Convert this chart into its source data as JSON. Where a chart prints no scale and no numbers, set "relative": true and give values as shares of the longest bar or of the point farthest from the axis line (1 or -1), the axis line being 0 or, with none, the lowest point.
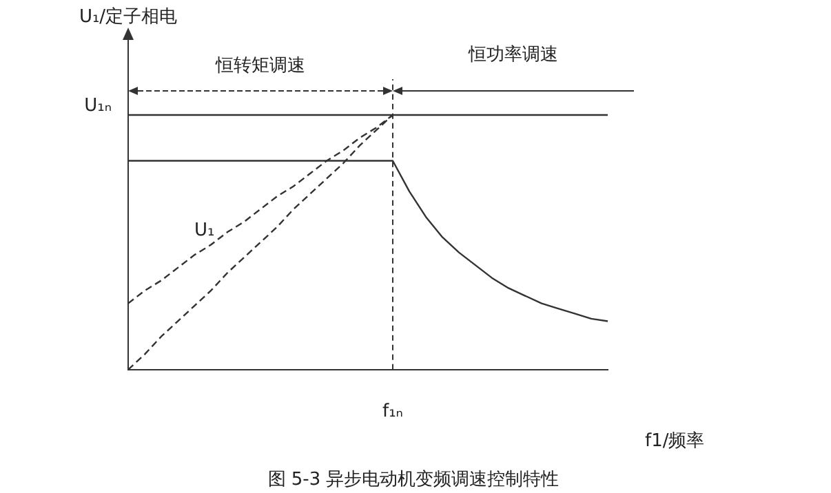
{
  "chart_data": {
    "type": "line",
    "title": "图 5-3 异步电动机变频调速控制特性",
    "xlabel": "f1/频率",
    "ylabel": "U₁/定子相电",
    "relative": true,
    "categories": [
      null,
      null,
      null,
      null,
      null,
      null,
      null,
      null,
      null,
      null,
      null,
      null,
      null,
      null,
      null,
      null,
      null,
      null,
      null,
      null,
      null,
      null,
      null,
      null,
      null,
      null,
      null,
      null,
      null,
      null
    ],
    "series": [
      {
        "color": "#333333",
        "values": [
          1,
          1,
          1,
          1,
          1,
          1,
          1,
          1,
          1,
          1,
          1,
          1,
          1,
          1,
          1,
          1,
          1,
          1,
          1,
          1,
          1,
          1,
          1,
          1,
          1,
          1,
          1,
          1,
          1,
          1
        ]
      },
      {
        "color": "#333333",
        "values": [
          0.82,
          0.82,
          0.82,
          0.82,
          0.82,
          0.82,
          0.82,
          0.82,
          0.82,
          0.82,
          0.82,
          0.82,
          0.82,
          0.82,
          0.82,
          0.82,
          0.82,
          0.7,
          0.6,
          0.52,
          0.46,
          0.41,
          0.36,
          0.32,
          0.29,
          0.26,
          0.24,
          0.22,
          0.2,
          0.19
        ]
      },
      {
        "name": "U₁",
        "color": "#333333",
        "line_style": "dashed",
        "values": [
          0.26,
          0.31,
          0.35,
          0.4,
          0.45,
          0.49,
          0.54,
          0.58,
          0.63,
          0.68,
          0.72,
          0.77,
          0.82,
          0.86,
          0.91,
          0.95,
          1,
          null,
          null,
          null,
          null,
          null,
          null,
          null,
          null,
          null,
          null,
          null,
          null,
          null
        ]
      },
      {
        "color": "#333333",
        "line_style": "dashed",
        "values": [
          0,
          0.06,
          0.13,
          0.19,
          0.25,
          0.31,
          0.38,
          0.44,
          0.5,
          0.56,
          0.63,
          0.69,
          0.75,
          0.81,
          0.88,
          0.94,
          1,
          null,
          null,
          null,
          null,
          null,
          null,
          null,
          null,
          null,
          null,
          null,
          null,
          null
        ]
      }
    ],
    "annotations": [
      "恒转矩调速",
      "恒功率调速",
      "U₁ₙ",
      "f₁ₙ"
    ],
    "grid": false,
    "legend": false,
    "marker": "none"
  }
}
